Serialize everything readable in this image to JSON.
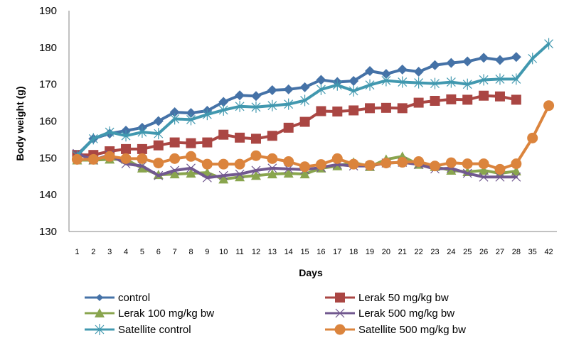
{
  "chart_data": {
    "type": "line",
    "title": "",
    "xlabel": "Days",
    "ylabel": "Body weight (g)",
    "ylim": [
      130,
      190
    ],
    "yticks": [
      130,
      140,
      150,
      160,
      170,
      180,
      190
    ],
    "categories": [
      "1",
      "2",
      "3",
      "4",
      "5",
      "6",
      "7",
      "8",
      "9",
      "10",
      "11",
      "12",
      "13",
      "14",
      "15",
      "16",
      "17",
      "18",
      "19",
      "20",
      "21",
      "22",
      "23",
      "24",
      "25",
      "26",
      "27",
      "28",
      "35",
      "42"
    ],
    "grid": false,
    "legend_position": "bottom",
    "series": [
      {
        "name": "control",
        "color": "#4572A7",
        "marker": "diamond",
        "values": [
          150.8,
          155.2,
          156.6,
          157.4,
          158.2,
          160.0,
          162.4,
          162.2,
          162.8,
          165.2,
          167.0,
          166.8,
          168.4,
          168.6,
          169.2,
          171.2,
          170.6,
          170.9,
          173.6,
          172.8,
          174.0,
          173.4,
          175.2,
          175.8,
          176.2,
          177.2,
          176.6,
          177.4,
          null,
          null
        ]
      },
      {
        "name": "Lerak 50 mg/kg bw",
        "color": "#AA4643",
        "marker": "square",
        "values": [
          150.8,
          150.8,
          151.8,
          152.4,
          152.4,
          153.4,
          154.2,
          154.0,
          154.2,
          156.3,
          155.5,
          155.2,
          156.0,
          158.2,
          159.8,
          162.7,
          162.6,
          162.9,
          163.5,
          163.6,
          163.5,
          165.0,
          165.5,
          165.9,
          165.8,
          166.9,
          166.7,
          165.8,
          null,
          null
        ]
      },
      {
        "name": "Lerak 100 mg/kg bw",
        "color": "#89A54E",
        "marker": "triangle",
        "values": [
          149.4,
          149.4,
          149.6,
          149.6,
          147.2,
          145.4,
          145.6,
          145.8,
          146.0,
          144.2,
          144.8,
          145.2,
          145.6,
          145.8,
          145.6,
          147.2,
          147.8,
          148.8,
          147.6,
          149.6,
          150.4,
          148.2,
          147.6,
          146.6,
          146.2,
          146.6,
          145.8,
          146.4,
          null,
          null
        ]
      },
      {
        "name": "Lerak 500 mg/kg bw",
        "color": "#71588F",
        "marker": "x",
        "values": [
          151.2,
          149.4,
          150.8,
          148.4,
          147.8,
          145.2,
          146.6,
          147.2,
          144.6,
          145.2,
          145.6,
          146.6,
          147.2,
          147.0,
          146.8,
          147.4,
          148.2,
          147.8,
          147.8,
          148.6,
          148.8,
          148.2,
          147.0,
          147.2,
          145.8,
          144.8,
          144.8,
          144.8,
          null,
          null
        ]
      },
      {
        "name": "Satellite control",
        "color": "#4198AF",
        "marker": "asterisk",
        "values": [
          150.6,
          155.2,
          157.0,
          156.0,
          157.0,
          156.6,
          160.6,
          160.4,
          161.8,
          163.0,
          164.0,
          163.8,
          164.2,
          164.6,
          165.6,
          168.6,
          169.8,
          168.2,
          169.8,
          171.0,
          170.6,
          170.4,
          170.2,
          170.6,
          170.0,
          171.2,
          171.4,
          171.4,
          177.0,
          181.0
        ]
      },
      {
        "name": "Satellite 500 mg/kg bw",
        "color": "#DB843D",
        "marker": "circle",
        "values": [
          149.6,
          149.6,
          150.4,
          149.8,
          149.8,
          148.6,
          149.8,
          150.4,
          148.3,
          148.3,
          148.3,
          150.6,
          149.8,
          149.0,
          147.6,
          148.2,
          149.8,
          148.3,
          148.0,
          148.6,
          148.8,
          149.0,
          147.8,
          148.7,
          148.4,
          148.4,
          146.9,
          148.4,
          155.4,
          164.2
        ]
      }
    ]
  }
}
